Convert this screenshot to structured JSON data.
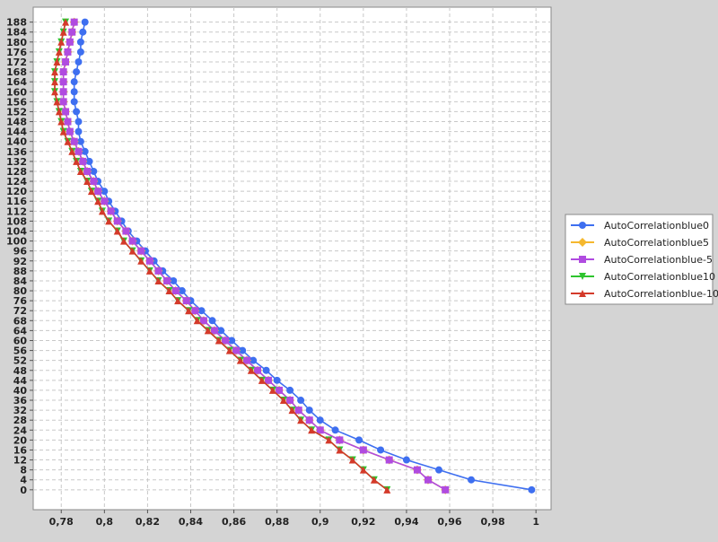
{
  "chart_data": {
    "type": "line",
    "orientation": "horizontal",
    "title": "",
    "xlabel": "",
    "ylabel": "",
    "xlim": [
      0.767,
      1.007
    ],
    "ylim": [
      -8,
      194
    ],
    "grid": true,
    "legend_position": "right",
    "x_ticks": [
      {
        "value": 0.78,
        "label": "0,78"
      },
      {
        "value": 0.8,
        "label": "0,8"
      },
      {
        "value": 0.82,
        "label": "0,82"
      },
      {
        "value": 0.84,
        "label": "0,84"
      },
      {
        "value": 0.86,
        "label": "0,86"
      },
      {
        "value": 0.88,
        "label": "0,88"
      },
      {
        "value": 0.9,
        "label": "0,9"
      },
      {
        "value": 0.92,
        "label": "0,92"
      },
      {
        "value": 0.94,
        "label": "0,94"
      },
      {
        "value": 0.96,
        "label": "0,96"
      },
      {
        "value": 0.98,
        "label": "0,98"
      },
      {
        "value": 1.0,
        "label": "1"
      }
    ],
    "y_ticks": [
      0,
      4,
      8,
      12,
      16,
      20,
      24,
      28,
      32,
      36,
      40,
      44,
      48,
      52,
      56,
      60,
      64,
      68,
      72,
      76,
      80,
      84,
      88,
      92,
      96,
      100,
      104,
      108,
      112,
      116,
      120,
      124,
      128,
      132,
      136,
      140,
      144,
      148,
      152,
      156,
      160,
      164,
      168,
      172,
      176,
      180,
      184,
      188
    ],
    "lags": [
      0,
      4,
      8,
      12,
      16,
      20,
      24,
      28,
      32,
      36,
      40,
      44,
      48,
      52,
      56,
      60,
      64,
      68,
      72,
      76,
      80,
      84,
      88,
      92,
      96,
      100,
      104,
      108,
      112,
      116,
      120,
      124,
      128,
      132,
      136,
      140,
      144,
      148,
      152,
      156,
      160,
      164,
      168,
      172,
      176,
      180,
      184,
      188
    ],
    "series": [
      {
        "name": "AutoCorrelationblue0",
        "color": "#3e6ff0",
        "marker": "circle",
        "values": [
          0.998,
          0.97,
          0.955,
          0.94,
          0.928,
          0.918,
          0.907,
          0.9,
          0.895,
          0.891,
          0.886,
          0.88,
          0.875,
          0.869,
          0.864,
          0.859,
          0.854,
          0.85,
          0.845,
          0.84,
          0.836,
          0.832,
          0.827,
          0.823,
          0.819,
          0.815,
          0.811,
          0.808,
          0.805,
          0.802,
          0.8,
          0.797,
          0.795,
          0.793,
          0.791,
          0.789,
          0.788,
          0.788,
          0.787,
          0.786,
          0.786,
          0.786,
          0.787,
          0.788,
          0.789,
          0.789,
          0.79,
          0.791
        ]
      },
      {
        "name": "AutoCorrelationblue5",
        "color": "#f5b82e",
        "marker": "diamond",
        "values": [
          0.958,
          0.95,
          0.945,
          0.932,
          0.92,
          0.909,
          0.9,
          0.895,
          0.89,
          0.886,
          0.881,
          0.876,
          0.871,
          0.866,
          0.861,
          0.856,
          0.851,
          0.846,
          0.842,
          0.838,
          0.833,
          0.829,
          0.825,
          0.821,
          0.817,
          0.813,
          0.81,
          0.806,
          0.803,
          0.8,
          0.797,
          0.795,
          0.792,
          0.79,
          0.788,
          0.786,
          0.784,
          0.783,
          0.782,
          0.781,
          0.781,
          0.781,
          0.781,
          0.782,
          0.783,
          0.784,
          0.785,
          0.786
        ]
      },
      {
        "name": "AutoCorrelationblue-5",
        "color": "#b04be0",
        "marker": "square",
        "values": [
          0.958,
          0.95,
          0.945,
          0.932,
          0.92,
          0.909,
          0.9,
          0.895,
          0.89,
          0.886,
          0.881,
          0.876,
          0.871,
          0.866,
          0.861,
          0.856,
          0.851,
          0.846,
          0.842,
          0.838,
          0.833,
          0.829,
          0.825,
          0.821,
          0.817,
          0.813,
          0.81,
          0.806,
          0.803,
          0.8,
          0.797,
          0.795,
          0.792,
          0.79,
          0.788,
          0.786,
          0.784,
          0.783,
          0.782,
          0.781,
          0.781,
          0.781,
          0.781,
          0.782,
          0.783,
          0.784,
          0.785,
          0.786
        ]
      },
      {
        "name": "AutoCorrelationblue10",
        "color": "#2ec42e",
        "marker": "triangle-down",
        "values": [
          0.931,
          0.925,
          0.92,
          0.915,
          0.909,
          0.904,
          0.896,
          0.891,
          0.887,
          0.883,
          0.878,
          0.873,
          0.868,
          0.863,
          0.858,
          0.853,
          0.848,
          0.843,
          0.839,
          0.834,
          0.83,
          0.825,
          0.821,
          0.817,
          0.813,
          0.809,
          0.806,
          0.802,
          0.799,
          0.797,
          0.794,
          0.792,
          0.789,
          0.787,
          0.785,
          0.783,
          0.781,
          0.78,
          0.779,
          0.778,
          0.777,
          0.777,
          0.777,
          0.778,
          0.779,
          0.78,
          0.781,
          0.782
        ]
      },
      {
        "name": "AutoCorrelationblue-10",
        "color": "#d43a2a",
        "marker": "triangle-up",
        "values": [
          0.931,
          0.925,
          0.92,
          0.915,
          0.909,
          0.904,
          0.896,
          0.891,
          0.887,
          0.883,
          0.878,
          0.873,
          0.868,
          0.863,
          0.858,
          0.853,
          0.848,
          0.843,
          0.839,
          0.834,
          0.83,
          0.825,
          0.821,
          0.817,
          0.813,
          0.809,
          0.806,
          0.802,
          0.799,
          0.797,
          0.794,
          0.792,
          0.789,
          0.787,
          0.785,
          0.783,
          0.781,
          0.78,
          0.779,
          0.778,
          0.777,
          0.777,
          0.777,
          0.778,
          0.779,
          0.78,
          0.781,
          0.782
        ]
      }
    ]
  }
}
